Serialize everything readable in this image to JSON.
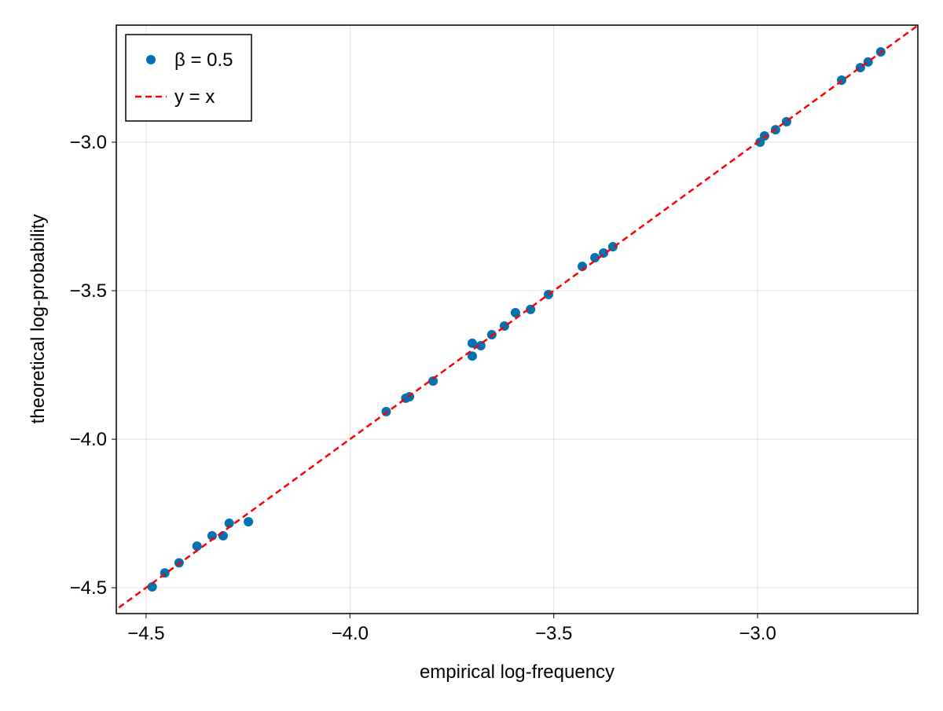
{
  "chart_data": {
    "type": "scatter",
    "title": "",
    "xlabel": "empirical log-frequency",
    "ylabel": "theoretical log-probability",
    "xlim": [
      -4.573,
      -2.607
    ],
    "ylim": [
      -4.587,
      -2.606
    ],
    "xticks": [
      -4.5,
      -4.0,
      -3.5,
      -3.0
    ],
    "yticks": [
      -4.5,
      -4.0,
      -3.5,
      -3.0
    ],
    "xtick_labels": [
      "−4.5",
      "−4.0",
      "−3.5",
      "−3.0"
    ],
    "ytick_labels": [
      "−4.5",
      "−4.0",
      "−3.5",
      "−3.0"
    ],
    "grid": true,
    "legend_position": "top-left",
    "series": [
      {
        "name": "β = 0.5",
        "kind": "scatter",
        "color": "#0072b2",
        "x": [
          -4.485,
          -4.454,
          -4.419,
          -4.375,
          -4.338,
          -4.311,
          -4.296,
          -4.249,
          -3.911,
          -3.863,
          -3.854,
          -3.796,
          -3.7,
          -3.7,
          -3.679,
          -3.652,
          -3.621,
          -3.594,
          -3.557,
          -3.513,
          -3.43,
          -3.399,
          -3.378,
          -3.355,
          -2.994,
          -2.983,
          -2.956,
          -2.929,
          -2.794,
          -2.748,
          -2.729,
          -2.698
        ],
        "y": [
          -4.497,
          -4.45,
          -4.416,
          -4.36,
          -4.325,
          -4.325,
          -4.283,
          -4.278,
          -3.907,
          -3.862,
          -3.857,
          -3.804,
          -3.677,
          -3.72,
          -3.685,
          -3.648,
          -3.619,
          -3.574,
          -3.563,
          -3.513,
          -3.418,
          -3.389,
          -3.373,
          -3.352,
          -3.0,
          -2.979,
          -2.958,
          -2.931,
          -2.791,
          -2.749,
          -2.73,
          -2.696
        ]
      },
      {
        "name": "y = x",
        "kind": "line",
        "style": "dashed",
        "color": "#ff0000"
      }
    ]
  }
}
